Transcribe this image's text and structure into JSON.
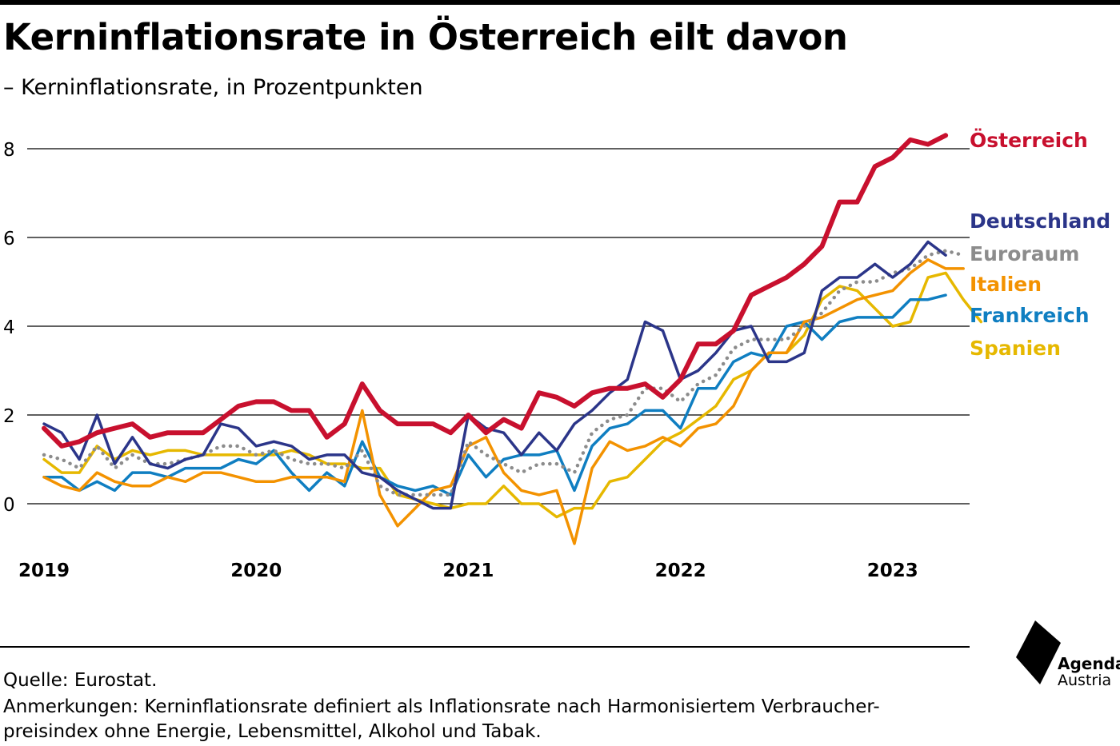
{
  "title": "Kerninflationsrate in Österreich eilt davon",
  "subtitle": "– Kerninflationsrate, in Prozentpunkten",
  "footer": {
    "source": "Quelle: Eurostat.",
    "note_line1": "Anmerkungen: Kerninflationsrate definiert als Inflationsrate nach Harmonisiertem Verbraucher-",
    "note_line2": "preisindex ohne Energie, Lebensmittel, Alkohol und Tabak."
  },
  "logo": {
    "line1": "Agenda",
    "line2": "Austria"
  },
  "chart_data": {
    "type": "line",
    "x_start": "2019-01",
    "x_end": "2023-04",
    "x_ticks": [
      "2019",
      "2020",
      "2021",
      "2022",
      "2023"
    ],
    "y_ticks": [
      0,
      2,
      4,
      6,
      8
    ],
    "ylim": [
      -1,
      8.5
    ],
    "grid": true,
    "legend": "right, labels at line ends",
    "series": [
      {
        "name": "Spanien",
        "color": "#e6b800",
        "style": "solid",
        "values": [
          1.0,
          0.7,
          0.7,
          1.3,
          1.0,
          1.2,
          1.1,
          1.2,
          1.2,
          1.1,
          1.1,
          1.1,
          1.1,
          1.1,
          1.2,
          1.1,
          0.9,
          0.9,
          0.8,
          0.8,
          0.2,
          0.1,
          0.0,
          -0.1,
          0.0,
          0.0,
          0.4,
          0.0,
          0.0,
          -0.3,
          -0.1,
          -0.1,
          0.5,
          0.6,
          1.0,
          1.4,
          1.6,
          1.9,
          2.2,
          2.8,
          3.0,
          3.4,
          3.4,
          3.8,
          4.6,
          4.9,
          4.8,
          4.4,
          4.0,
          4.1,
          5.1,
          5.2,
          4.6,
          4.1
        ]
      },
      {
        "name": "Frankreich",
        "color": "#0f7ec1",
        "style": "solid",
        "values": [
          0.6,
          0.6,
          0.3,
          0.5,
          0.3,
          0.7,
          0.7,
          0.6,
          0.8,
          0.8,
          0.8,
          1.0,
          0.9,
          1.2,
          0.7,
          0.3,
          0.7,
          0.4,
          1.4,
          0.6,
          0.4,
          0.3,
          0.4,
          0.2,
          1.1,
          0.6,
          1.0,
          1.1,
          1.1,
          1.2,
          0.3,
          1.3,
          1.7,
          1.8,
          2.1,
          2.1,
          1.7,
          2.6,
          2.6,
          3.2,
          3.4,
          3.3,
          4.0,
          4.1,
          3.7,
          4.1,
          4.2,
          4.2,
          4.2,
          4.6,
          4.6,
          4.7
        ]
      },
      {
        "name": "Italien",
        "color": "#f39200",
        "style": "solid",
        "values": [
          0.6,
          0.4,
          0.3,
          0.7,
          0.5,
          0.4,
          0.4,
          0.6,
          0.5,
          0.7,
          0.7,
          0.6,
          0.5,
          0.5,
          0.6,
          0.6,
          0.6,
          0.5,
          2.1,
          0.2,
          -0.5,
          -0.1,
          0.3,
          0.4,
          1.3,
          1.5,
          0.7,
          0.3,
          0.2,
          0.3,
          -0.9,
          0.8,
          1.4,
          1.2,
          1.3,
          1.5,
          1.3,
          1.7,
          1.8,
          2.2,
          3.0,
          3.4,
          3.4,
          4.1,
          4.2,
          4.4,
          4.6,
          4.7,
          4.8,
          5.2,
          5.5,
          5.3,
          5.3
        ]
      },
      {
        "name": "Euroraum",
        "color": "#8c8c8c",
        "style": "dotted",
        "values": [
          1.1,
          1.0,
          0.8,
          1.3,
          0.8,
          1.1,
          0.9,
          0.9,
          1.0,
          1.1,
          1.3,
          1.3,
          1.1,
          1.2,
          1.0,
          0.9,
          0.9,
          0.8,
          1.2,
          0.4,
          0.2,
          0.2,
          0.2,
          0.2,
          1.4,
          1.1,
          0.9,
          0.7,
          0.9,
          0.9,
          0.7,
          1.6,
          1.9,
          2.0,
          2.6,
          2.6,
          2.3,
          2.7,
          2.9,
          3.5,
          3.7,
          3.7,
          3.7,
          4.0,
          4.3,
          4.8,
          5.0,
          5.0,
          5.2,
          5.3,
          5.6,
          5.7,
          5.6
        ]
      },
      {
        "name": "Deutschland",
        "color": "#2b3589",
        "style": "solid",
        "values": [
          1.8,
          1.6,
          1.0,
          2.0,
          0.9,
          1.5,
          0.9,
          0.8,
          1.0,
          1.1,
          1.8,
          1.7,
          1.3,
          1.4,
          1.3,
          1.0,
          1.1,
          1.1,
          0.7,
          0.6,
          0.3,
          0.1,
          -0.1,
          -0.1,
          2.0,
          1.7,
          1.6,
          1.1,
          1.6,
          1.2,
          1.8,
          2.1,
          2.5,
          2.8,
          4.1,
          3.9,
          2.8,
          3.0,
          3.4,
          3.9,
          4.0,
          3.2,
          3.2,
          3.4,
          4.8,
          5.1,
          5.1,
          5.4,
          5.1,
          5.4,
          5.9,
          5.6
        ]
      },
      {
        "name": "Österreich",
        "color": "#c8102e",
        "style": "solid",
        "values": [
          1.7,
          1.3,
          1.4,
          1.6,
          1.7,
          1.8,
          1.5,
          1.6,
          1.6,
          1.6,
          1.9,
          2.2,
          2.3,
          2.3,
          2.1,
          2.1,
          1.5,
          1.8,
          2.7,
          2.1,
          1.8,
          1.8,
          1.8,
          1.6,
          2.0,
          1.6,
          1.9,
          1.7,
          2.5,
          2.4,
          2.2,
          2.5,
          2.6,
          2.6,
          2.7,
          2.4,
          2.8,
          3.6,
          3.6,
          3.9,
          4.7,
          4.9,
          5.1,
          5.4,
          5.8,
          6.8,
          6.8,
          7.6,
          7.8,
          8.2,
          8.1,
          8.3
        ]
      }
    ]
  }
}
